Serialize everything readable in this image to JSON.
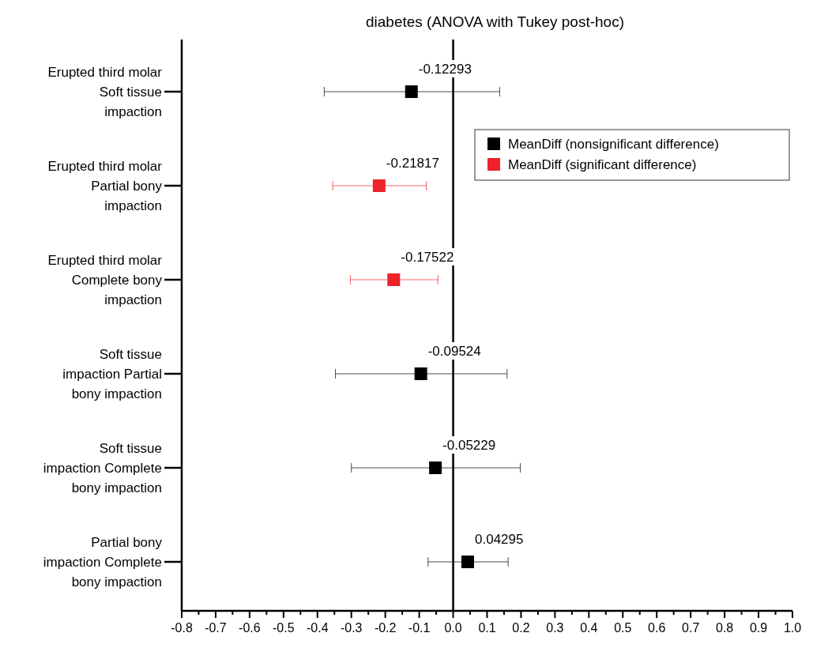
{
  "chart_data": {
    "type": "scatter",
    "orientation": "horizontal",
    "title": "diabetes (ANOVA with Tukey post-hoc)",
    "categories": [
      "Erupted third molar Soft tissue impaction",
      "Erupted third molar Partial bony impaction",
      "Erupted third molar Complete bony impaction",
      "Soft tissue impaction Partial bony impaction",
      "Soft tissue impaction Complete bony impaction",
      "Partial bony impaction Complete bony impaction"
    ],
    "series": [
      {
        "name": "MeanDiff (nonsignificant difference)",
        "color": "#000000",
        "values": [
          -0.12293,
          null,
          null,
          -0.09524,
          -0.05229,
          0.04295
        ],
        "errors": [
          [
            -0.38,
            0.137
          ],
          null,
          null,
          [
            -0.347,
            0.159
          ],
          [
            -0.3,
            0.198
          ],
          [
            -0.074,
            0.162
          ]
        ],
        "value_labels": [
          "-0.12293",
          null,
          null,
          "-0.09524",
          "-0.05229",
          "0.04295"
        ]
      },
      {
        "name": "MeanDiff (significant difference)",
        "color": "#ee2229",
        "values": [
          null,
          -0.21817,
          -0.17522,
          null,
          null,
          null
        ],
        "errors": [
          null,
          [
            -0.355,
            -0.079
          ],
          [
            -0.303,
            -0.045
          ],
          null,
          null,
          null
        ],
        "value_labels": [
          null,
          "-0.21817",
          "-0.17522",
          null,
          null,
          null
        ]
      }
    ],
    "xlim": [
      -0.8,
      1.0
    ],
    "xticks": [
      {
        "value": -0.8,
        "label": "-0.8"
      },
      {
        "value": -0.75,
        "label": null
      },
      {
        "value": -0.7,
        "label": "-0.7"
      },
      {
        "value": -0.65,
        "label": null
      },
      {
        "value": -0.6,
        "label": "-0.6"
      },
      {
        "value": -0.55,
        "label": null
      },
      {
        "value": -0.5,
        "label": "-0.5"
      },
      {
        "value": -0.45,
        "label": null
      },
      {
        "value": -0.4,
        "label": "-0.4"
      },
      {
        "value": -0.35,
        "label": null
      },
      {
        "value": -0.3,
        "label": "-0.3"
      },
      {
        "value": -0.25,
        "label": null
      },
      {
        "value": -0.2,
        "label": "-0.2"
      },
      {
        "value": -0.15,
        "label": null
      },
      {
        "value": -0.1,
        "label": "-0.1"
      },
      {
        "value": -0.05,
        "label": null
      },
      {
        "value": 0,
        "label": "0.0"
      },
      {
        "value": 0.05,
        "label": null
      },
      {
        "value": 0.1,
        "label": "0.1"
      },
      {
        "value": 0.15,
        "label": null
      },
      {
        "value": 0.2,
        "label": "0.2"
      },
      {
        "value": 0.25,
        "label": null
      },
      {
        "value": 0.3,
        "label": "0.3"
      },
      {
        "value": 0.35,
        "label": null
      },
      {
        "value": 0.4,
        "label": "0.4"
      },
      {
        "value": 0.45,
        "label": null
      },
      {
        "value": 0.5,
        "label": "0.5"
      },
      {
        "value": 0.55,
        "label": null
      },
      {
        "value": 0.6,
        "label": "0.6"
      },
      {
        "value": 0.65,
        "label": null
      },
      {
        "value": 0.7,
        "label": "0.7"
      },
      {
        "value": 0.75,
        "label": null
      },
      {
        "value": 0.8,
        "label": "0.8"
      },
      {
        "value": 0.85,
        "label": null
      },
      {
        "value": 0.9,
        "label": "0.9"
      },
      {
        "value": 0.95,
        "label": null
      },
      {
        "value": 1.0,
        "label": "1.0"
      }
    ],
    "ref_lines": [
      {
        "axis": "x",
        "value": 0,
        "color": "#000000"
      }
    ],
    "marker": "square",
    "legend": "top right",
    "grid": false
  }
}
